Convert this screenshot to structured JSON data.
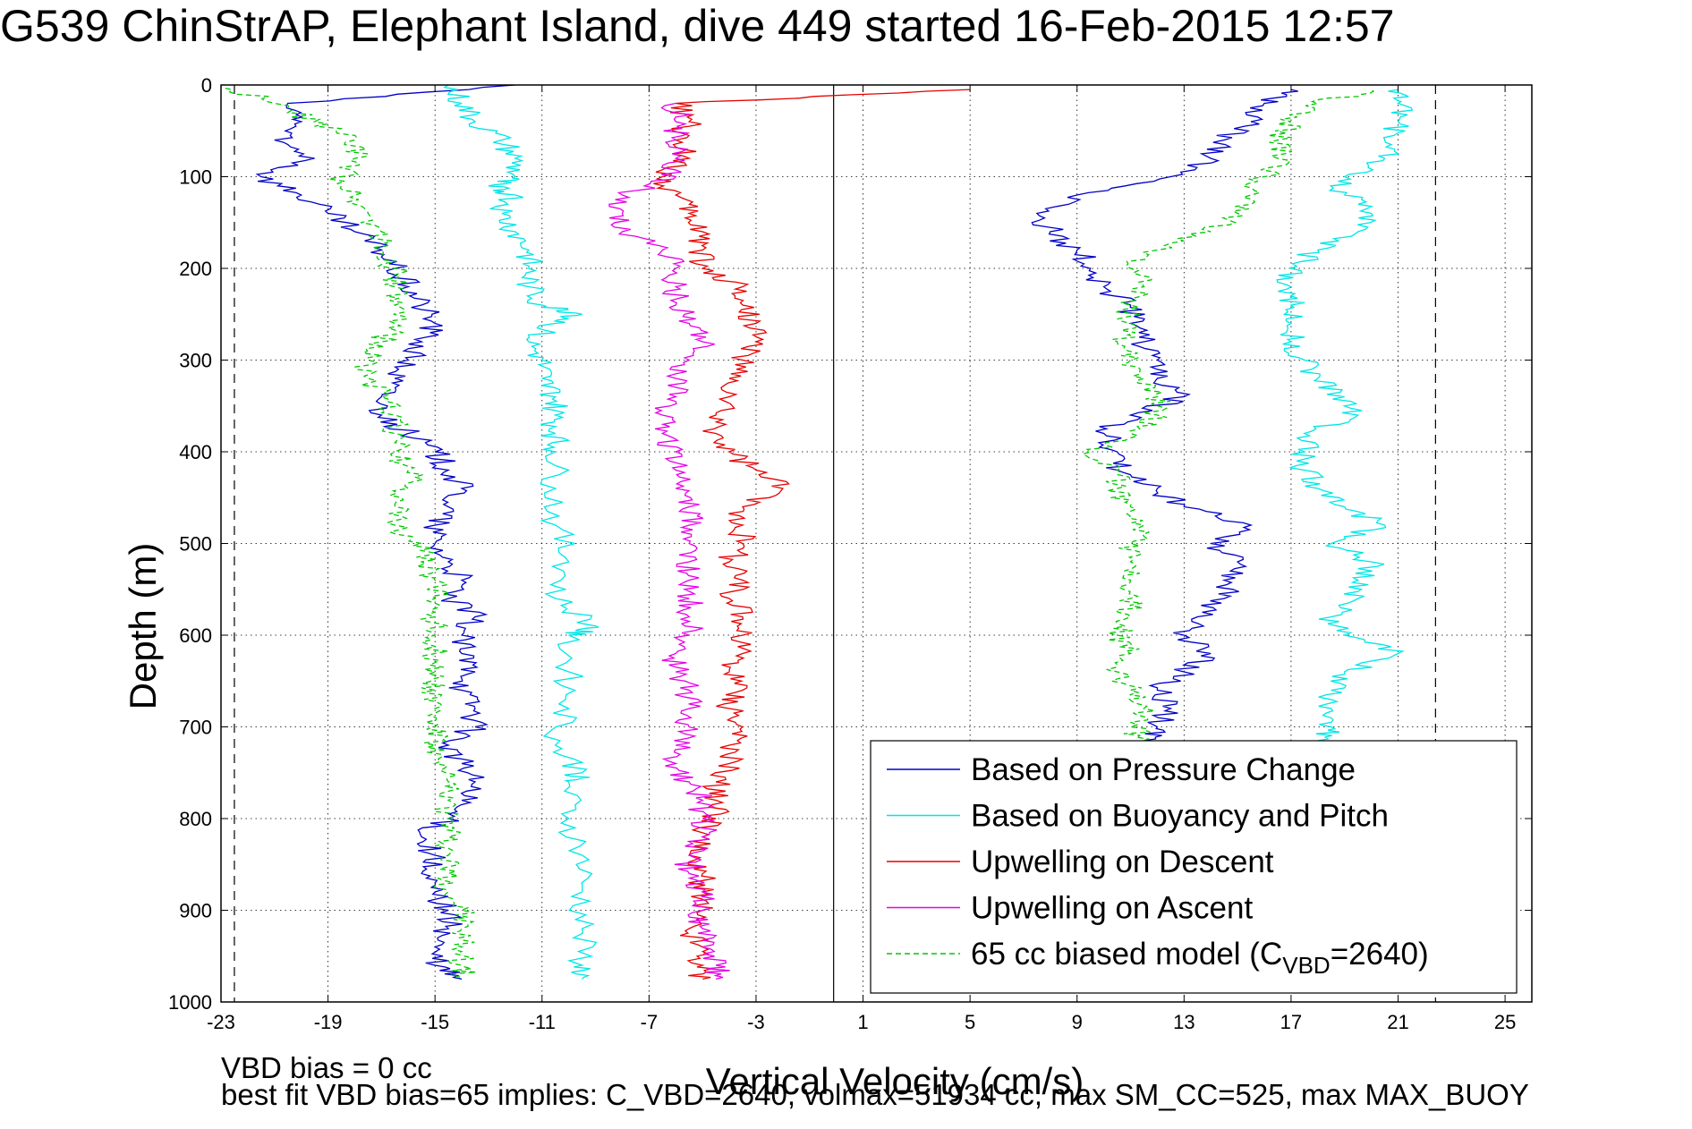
{
  "chart_data": {
    "type": "line",
    "title": "G539 ChinStrAP, Elephant Island, dive 449 started 16-Feb-2015 12:57",
    "xlabel": "Vertical Velocity (cm/s)",
    "ylabel": "Depth (m)",
    "xlim": [
      -23,
      26
    ],
    "ylim": [
      1000,
      0
    ],
    "y_reversed": true,
    "grid": true,
    "xticks": [
      -23,
      -19,
      -15,
      -11,
      -7,
      -3,
      1,
      5,
      9,
      13,
      17,
      21,
      25
    ],
    "yticks": [
      0,
      100,
      200,
      300,
      400,
      500,
      600,
      700,
      800,
      900,
      1000
    ],
    "vertical_lines": [
      {
        "x": -22.5,
        "style": "dashed",
        "color": "#000000"
      },
      {
        "x": -0.1,
        "style": "solid",
        "color": "#000000"
      },
      {
        "x": 22.4,
        "style": "dashed",
        "color": "#000000"
      }
    ],
    "legend_position": "lower-right",
    "series": [
      {
        "name": "Based on Pressure Change",
        "color": "#0000c8",
        "style": "solid",
        "descent": {
          "depth": [
            0,
            20,
            40,
            60,
            80,
            100,
            120,
            140,
            160,
            180,
            200,
            220,
            240,
            260,
            280,
            300,
            320,
            340,
            360,
            380,
            400,
            420,
            440,
            460,
            480,
            500,
            520,
            540,
            560,
            580,
            600,
            620,
            640,
            660,
            680,
            700,
            720,
            740,
            760,
            780,
            800,
            820,
            840,
            860,
            880,
            900,
            920,
            940,
            960,
            975
          ],
          "velocity": [
            -12,
            -20.5,
            -20,
            -21,
            -19.5,
            -21.5,
            -20,
            -19,
            -18,
            -17,
            -16.5,
            -16,
            -15.5,
            -15,
            -15.5,
            -16,
            -16.5,
            -17,
            -17,
            -16,
            -15,
            -14.5,
            -14,
            -14.5,
            -15,
            -15,
            -14.5,
            -14,
            -14.5,
            -13.5,
            -14,
            -14,
            -13.5,
            -14,
            -13.5,
            -13.5,
            -14.5,
            -14,
            -13.5,
            -14,
            -14.5,
            -15.5,
            -15,
            -15.5,
            -15,
            -14.5,
            -14.5,
            -15,
            -15,
            -14
          ]
        },
        "ascent": {
          "depth": [
            715,
            700,
            680,
            660,
            640,
            620,
            600,
            580,
            560,
            540,
            520,
            500,
            480,
            460,
            440,
            420,
            400,
            380,
            360,
            340,
            320,
            300,
            280,
            260,
            240,
            220,
            200,
            180,
            160,
            140,
            120,
            100,
            80,
            60,
            40,
            20,
            5
          ],
          "velocity": [
            11.5,
            12,
            12.5,
            12,
            13,
            14,
            13,
            13.5,
            14.5,
            14.5,
            15,
            14,
            15.5,
            13,
            12,
            10.5,
            10.5,
            10,
            11,
            13,
            12,
            12,
            11.5,
            11,
            11,
            10,
            9.5,
            9,
            8,
            7.5,
            9,
            12.5,
            14,
            14.5,
            15.5,
            16,
            17
          ]
        }
      },
      {
        "name": "Based on Buoyancy and Pitch",
        "color": "#00e6e6",
        "style": "solid",
        "descent": {
          "depth": [
            0,
            20,
            40,
            60,
            80,
            100,
            110,
            120,
            140,
            160,
            180,
            200,
            220,
            240,
            250,
            260,
            280,
            300,
            320,
            340,
            360,
            380,
            400,
            440,
            480,
            520,
            560,
            590,
            600,
            640,
            680,
            720,
            750,
            760,
            800,
            840,
            880,
            920,
            960,
            975
          ],
          "velocity": [
            -14.5,
            -14,
            -13.5,
            -12.5,
            -12,
            -12,
            -13,
            -12,
            -12.5,
            -12,
            -11.5,
            -11.5,
            -11.5,
            -11,
            -9.5,
            -10.5,
            -11.5,
            -11,
            -11,
            -10.5,
            -10.5,
            -10.5,
            -10.5,
            -10.5,
            -10.5,
            -10,
            -10.5,
            -9,
            -10,
            -10,
            -10,
            -10.5,
            -9.5,
            -10,
            -10,
            -9.5,
            -9.5,
            -9.5,
            -9.5,
            -9.5
          ]
        },
        "ascent": {
          "depth": [
            715,
            700,
            680,
            660,
            640,
            620,
            600,
            580,
            560,
            540,
            520,
            500,
            480,
            460,
            440,
            420,
            400,
            380,
            360,
            340,
            320,
            300,
            280,
            260,
            240,
            220,
            200,
            180,
            160,
            140,
            120,
            100,
            80,
            60,
            40,
            20,
            5
          ],
          "velocity": [
            18,
            18.5,
            18.5,
            18.5,
            19,
            21,
            19,
            18.5,
            19.5,
            19.5,
            20,
            18.5,
            20.5,
            19,
            18,
            17.5,
            17.5,
            17.5,
            19.5,
            19,
            18,
            17.5,
            17,
            17,
            17,
            17,
            17,
            18,
            19.5,
            20,
            19,
            19,
            20.5,
            20.5,
            21,
            21,
            21
          ]
        }
      },
      {
        "name": "Upwelling on Descent",
        "color": "#e60000",
        "style": "solid",
        "points": {
          "depth": [
            5,
            20,
            40,
            60,
            80,
            100,
            120,
            140,
            160,
            180,
            200,
            220,
            240,
            260,
            280,
            300,
            320,
            340,
            360,
            380,
            400,
            420,
            440,
            460,
            480,
            500,
            520,
            540,
            560,
            580,
            600,
            620,
            640,
            660,
            680,
            700,
            720,
            740,
            760,
            780,
            800,
            820,
            840,
            860,
            880,
            900,
            920,
            940,
            960,
            975
          ],
          "velocity": [
            5,
            -6,
            -5.5,
            -6,
            -5.5,
            -6.5,
            -6,
            -5.5,
            -5,
            -5,
            -5,
            -3.5,
            -3.5,
            -3,
            -3,
            -3.5,
            -4,
            -4,
            -4.5,
            -4.5,
            -4,
            -3,
            -2,
            -3.5,
            -3.5,
            -3.5,
            -4,
            -3.5,
            -4,
            -3.5,
            -3.5,
            -3.5,
            -4,
            -3.5,
            -4,
            -3.5,
            -4,
            -4,
            -4.5,
            -4.5,
            -4.5,
            -5,
            -5.5,
            -5,
            -5,
            -5,
            -5.5,
            -5,
            -5,
            -5
          ]
        }
      },
      {
        "name": "Upwelling on Ascent",
        "color": "#e600e6",
        "style": "solid",
        "points": {
          "depth": [
            975,
            960,
            940,
            920,
            900,
            880,
            860,
            840,
            820,
            800,
            780,
            760,
            740,
            720,
            700,
            680,
            660,
            640,
            620,
            600,
            580,
            560,
            540,
            520,
            500,
            480,
            460,
            440,
            420,
            400,
            380,
            360,
            340,
            320,
            300,
            280,
            260,
            240,
            220,
            200,
            180,
            160,
            140,
            120,
            100,
            80,
            60,
            40,
            20
          ],
          "velocity": [
            -4.5,
            -4.5,
            -5,
            -5,
            -5,
            -5,
            -5.5,
            -5.5,
            -5,
            -5,
            -5,
            -5.5,
            -6,
            -6,
            -5.5,
            -5.5,
            -5.5,
            -6,
            -6,
            -5.5,
            -5.5,
            -5.5,
            -5.5,
            -5.5,
            -5.5,
            -5.5,
            -5.5,
            -6,
            -6,
            -6,
            -6.5,
            -6.5,
            -6,
            -6,
            -5.5,
            -5,
            -5.5,
            -6,
            -6,
            -6,
            -6.5,
            -8,
            -8,
            -8,
            -6,
            -6,
            -6,
            -6,
            -6
          ]
        }
      },
      {
        "name": "65 cc biased model (C_VBD=2640)",
        "legend_main": "65 cc biased model (C",
        "legend_sub": "VBD",
        "legend_tail": "=2640)",
        "color": "#00c800",
        "style": "dashed",
        "descent": {
          "depth": [
            0,
            20,
            40,
            60,
            80,
            100,
            120,
            140,
            160,
            180,
            200,
            220,
            240,
            260,
            280,
            300,
            320,
            340,
            360,
            380,
            400,
            420,
            440,
            460,
            480,
            500,
            520,
            540,
            560,
            580,
            600,
            620,
            640,
            660,
            680,
            700,
            720,
            740,
            760,
            780,
            800,
            820,
            840,
            860,
            880,
            900,
            920,
            940,
            960,
            975
          ],
          "velocity": [
            -23,
            -21,
            -19.5,
            -18,
            -18,
            -18.5,
            -18,
            -17.5,
            -17,
            -17,
            -16.5,
            -16.5,
            -16.5,
            -16.5,
            -17,
            -17.5,
            -17.5,
            -17,
            -16.5,
            -16.5,
            -16.5,
            -16,
            -16,
            -16.5,
            -16.5,
            -15.5,
            -15.5,
            -15,
            -15,
            -15,
            -15,
            -15,
            -15,
            -15,
            -15,
            -15,
            -15,
            -15,
            -14.5,
            -14.5,
            -14.5,
            -14.5,
            -14.5,
            -14.5,
            -14.5,
            -14,
            -14,
            -14,
            -14,
            -14
          ]
        },
        "ascent": {
          "depth": [
            715,
            700,
            680,
            660,
            640,
            620,
            600,
            580,
            560,
            540,
            520,
            500,
            480,
            460,
            440,
            420,
            400,
            380,
            360,
            340,
            320,
            300,
            280,
            260,
            240,
            220,
            200,
            180,
            160,
            140,
            120,
            100,
            80,
            60,
            40,
            20,
            5
          ],
          "velocity": [
            11.5,
            11,
            11.5,
            11,
            10.5,
            11,
            10.5,
            11,
            11,
            11,
            11,
            11,
            11.5,
            11,
            10.5,
            10.5,
            9.5,
            11,
            12,
            12,
            11.5,
            11,
            10.5,
            11,
            11,
            11.5,
            11,
            12,
            14,
            15,
            15.5,
            16,
            16.5,
            16.5,
            17,
            18,
            20
          ]
        }
      }
    ]
  },
  "footer": {
    "bias_note": "VBD bias = 0 cc",
    "fit_note": "best fit VBD bias=65 implies: C_VBD=2640, volmax=51934 cc, max SM_CC=525, max MAX_BUOY"
  }
}
